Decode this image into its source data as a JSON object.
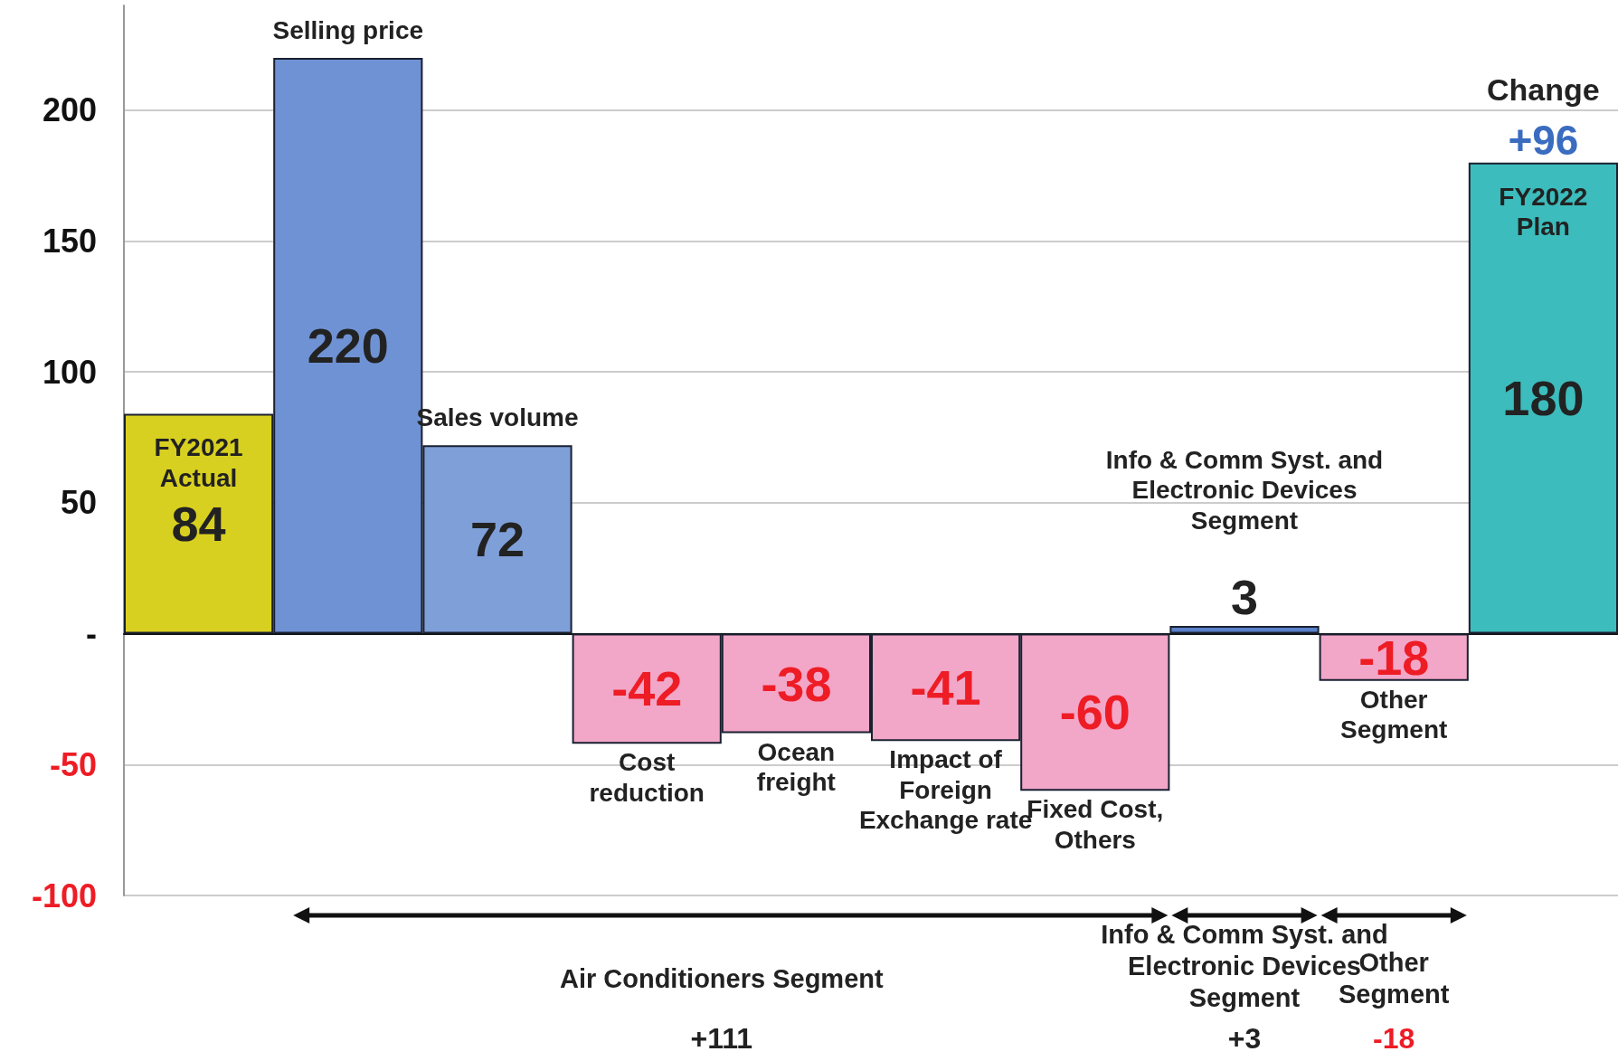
{
  "chart_data": {
    "type": "bar",
    "categories": [
      "FY2021 Actual",
      "Selling price",
      "Sales volume",
      "Cost reduction",
      "Ocean freight",
      "Impact of Foreign Exchange rate",
      "Fixed Cost, Others",
      "Info & Comm Syst. and Electronic Devices Segment",
      "Other Segment",
      "FY2022 Plan"
    ],
    "values": [
      84,
      220,
      72,
      -42,
      -38,
      -41,
      -60,
      3,
      -18,
      180
    ],
    "colors": [
      "#d8d020",
      "#6f92d4",
      "#7f9fd8",
      "#f2a6c8",
      "#f2a6c8",
      "#f2a6c8",
      "#f2a6c8",
      "#5a80c8",
      "#f2a6c8",
      "#3cbcbc"
    ],
    "data_labels": true,
    "ylim": [
      -100,
      240
    ],
    "yticks": [
      -100,
      -50,
      {
        "value": 0,
        "label": "-"
      },
      50,
      100,
      150,
      200
    ],
    "grid": "y",
    "annotations": [
      "Change",
      "+96",
      "Air Conditioners Segment",
      "+111",
      "Info & Comm Syst. and Electronic Devices Segment",
      "+3",
      "Other Segment",
      "-18"
    ]
  }
}
